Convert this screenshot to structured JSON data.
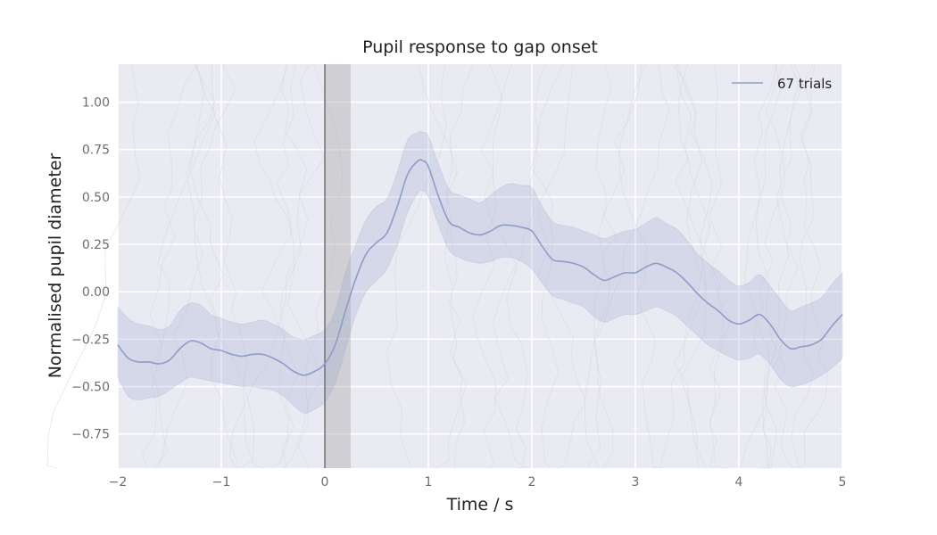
{
  "chart_data": {
    "type": "line",
    "title": "Pupil response to gap onset",
    "xlabel": "Time / s",
    "ylabel": "Normalised pupil diameter",
    "xlim": [
      -2,
      5
    ],
    "ylim": [
      -0.93,
      1.2
    ],
    "x_ticks": [
      -2,
      -1,
      0,
      1,
      2,
      3,
      4,
      5
    ],
    "x_tick_labels": [
      "−2",
      "−1",
      "0",
      "1",
      "2",
      "3",
      "4",
      "5"
    ],
    "y_ticks": [
      -0.75,
      -0.5,
      -0.25,
      0.0,
      0.25,
      0.5,
      0.75,
      1.0
    ],
    "y_tick_labels": [
      "−0.75",
      "−0.50",
      "−0.25",
      "0.00",
      "0.25",
      "0.50",
      "0.75",
      "1.00"
    ],
    "grid": true,
    "legend_position": "top-right",
    "onset_line_x": 0,
    "gap_span": [
      0,
      0.25
    ],
    "series": [
      {
        "name": "67 trials",
        "color": "#8c9dca",
        "x": [
          -2.0,
          -1.9,
          -1.8,
          -1.7,
          -1.6,
          -1.5,
          -1.4,
          -1.3,
          -1.2,
          -1.1,
          -1.0,
          -0.9,
          -0.8,
          -0.7,
          -0.6,
          -0.5,
          -0.4,
          -0.3,
          -0.2,
          -0.1,
          0.0,
          0.1,
          0.2,
          0.3,
          0.4,
          0.5,
          0.6,
          0.7,
          0.8,
          0.9,
          0.95,
          1.0,
          1.1,
          1.2,
          1.3,
          1.4,
          1.5,
          1.6,
          1.7,
          1.8,
          1.9,
          2.0,
          2.1,
          2.2,
          2.3,
          2.4,
          2.5,
          2.6,
          2.7,
          2.8,
          2.9,
          3.0,
          3.1,
          3.2,
          3.3,
          3.4,
          3.5,
          3.6,
          3.7,
          3.8,
          3.9,
          4.0,
          4.1,
          4.2,
          4.3,
          4.4,
          4.5,
          4.6,
          4.7,
          4.8,
          4.9,
          5.0
        ],
        "mean": [
          -0.28,
          -0.35,
          -0.37,
          -0.37,
          -0.38,
          -0.36,
          -0.3,
          -0.26,
          -0.27,
          -0.3,
          -0.31,
          -0.33,
          -0.34,
          -0.33,
          -0.33,
          -0.35,
          -0.38,
          -0.42,
          -0.44,
          -0.42,
          -0.38,
          -0.28,
          -0.1,
          0.07,
          0.2,
          0.26,
          0.31,
          0.45,
          0.62,
          0.69,
          0.69,
          0.66,
          0.5,
          0.37,
          0.34,
          0.31,
          0.3,
          0.32,
          0.35,
          0.35,
          0.34,
          0.32,
          0.24,
          0.17,
          0.16,
          0.15,
          0.13,
          0.09,
          0.06,
          0.08,
          0.1,
          0.1,
          0.13,
          0.15,
          0.13,
          0.1,
          0.05,
          -0.01,
          -0.06,
          -0.1,
          -0.15,
          -0.17,
          -0.15,
          -0.12,
          -0.17,
          -0.25,
          -0.3,
          -0.29,
          -0.28,
          -0.25,
          -0.18,
          -0.12
        ],
        "lower": [
          -0.45,
          -0.55,
          -0.57,
          -0.56,
          -0.55,
          -0.52,
          -0.48,
          -0.45,
          -0.46,
          -0.47,
          -0.48,
          -0.49,
          -0.5,
          -0.5,
          -0.51,
          -0.52,
          -0.55,
          -0.6,
          -0.64,
          -0.62,
          -0.58,
          -0.48,
          -0.3,
          -0.12,
          0.0,
          0.06,
          0.12,
          0.25,
          0.42,
          0.52,
          0.53,
          0.5,
          0.35,
          0.22,
          0.18,
          0.16,
          0.15,
          0.16,
          0.18,
          0.18,
          0.16,
          0.12,
          0.05,
          -0.02,
          -0.04,
          -0.06,
          -0.08,
          -0.13,
          -0.16,
          -0.14,
          -0.12,
          -0.12,
          -0.1,
          -0.08,
          -0.1,
          -0.13,
          -0.18,
          -0.23,
          -0.28,
          -0.31,
          -0.34,
          -0.36,
          -0.35,
          -0.33,
          -0.38,
          -0.46,
          -0.5,
          -0.49,
          -0.47,
          -0.44,
          -0.4,
          -0.35
        ],
        "upper": [
          -0.08,
          -0.14,
          -0.17,
          -0.18,
          -0.2,
          -0.18,
          -0.1,
          -0.06,
          -0.07,
          -0.12,
          -0.14,
          -0.16,
          -0.17,
          -0.16,
          -0.15,
          -0.17,
          -0.2,
          -0.24,
          -0.25,
          -0.23,
          -0.2,
          -0.1,
          0.1,
          0.25,
          0.38,
          0.45,
          0.49,
          0.63,
          0.8,
          0.84,
          0.84,
          0.82,
          0.67,
          0.54,
          0.51,
          0.49,
          0.47,
          0.51,
          0.55,
          0.57,
          0.56,
          0.55,
          0.45,
          0.37,
          0.35,
          0.34,
          0.32,
          0.3,
          0.28,
          0.3,
          0.32,
          0.33,
          0.36,
          0.39,
          0.36,
          0.33,
          0.27,
          0.2,
          0.15,
          0.11,
          0.06,
          0.03,
          0.05,
          0.09,
          0.03,
          -0.04,
          -0.1,
          -0.08,
          -0.06,
          -0.03,
          0.04,
          0.1
        ]
      }
    ]
  }
}
